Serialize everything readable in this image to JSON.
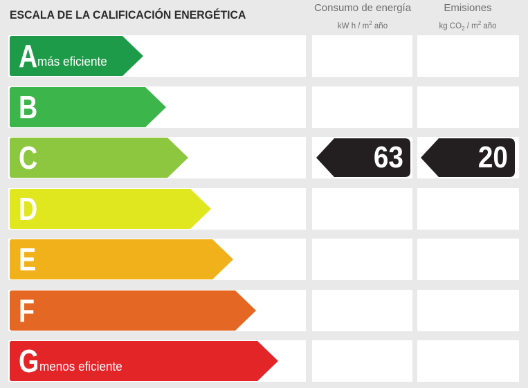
{
  "title": "ESCALA DE LA CALIFICACIÓN ENERGÉTICA",
  "columns": {
    "energy": {
      "title": "Consumo de energía",
      "unit_pre": "kW h / m",
      "unit_sup": "2",
      "unit_post": " año"
    },
    "emissions": {
      "title": "Emisiones",
      "unit_pre": "kg CO",
      "unit_sub": "2",
      "unit_mid": " / m",
      "unit_sup": "2",
      "unit_post": " año"
    }
  },
  "classes": [
    {
      "letter": "A",
      "note": "más eficiente",
      "color": "#1e9b48"
    },
    {
      "letter": "B",
      "note": "",
      "color": "#3cb54a"
    },
    {
      "letter": "C",
      "note": "",
      "color": "#8dc63f"
    },
    {
      "letter": "D",
      "note": "",
      "color": "#e1e71e"
    },
    {
      "letter": "E",
      "note": "",
      "color": "#f1b11b"
    },
    {
      "letter": "F",
      "note": "",
      "color": "#e46823"
    },
    {
      "letter": "G",
      "note": "menos eficiente",
      "color": "#e42528"
    }
  ],
  "rating": {
    "class": "C",
    "energy_value": "63",
    "emissions_value": "20",
    "badge_color": "#231f20"
  }
}
